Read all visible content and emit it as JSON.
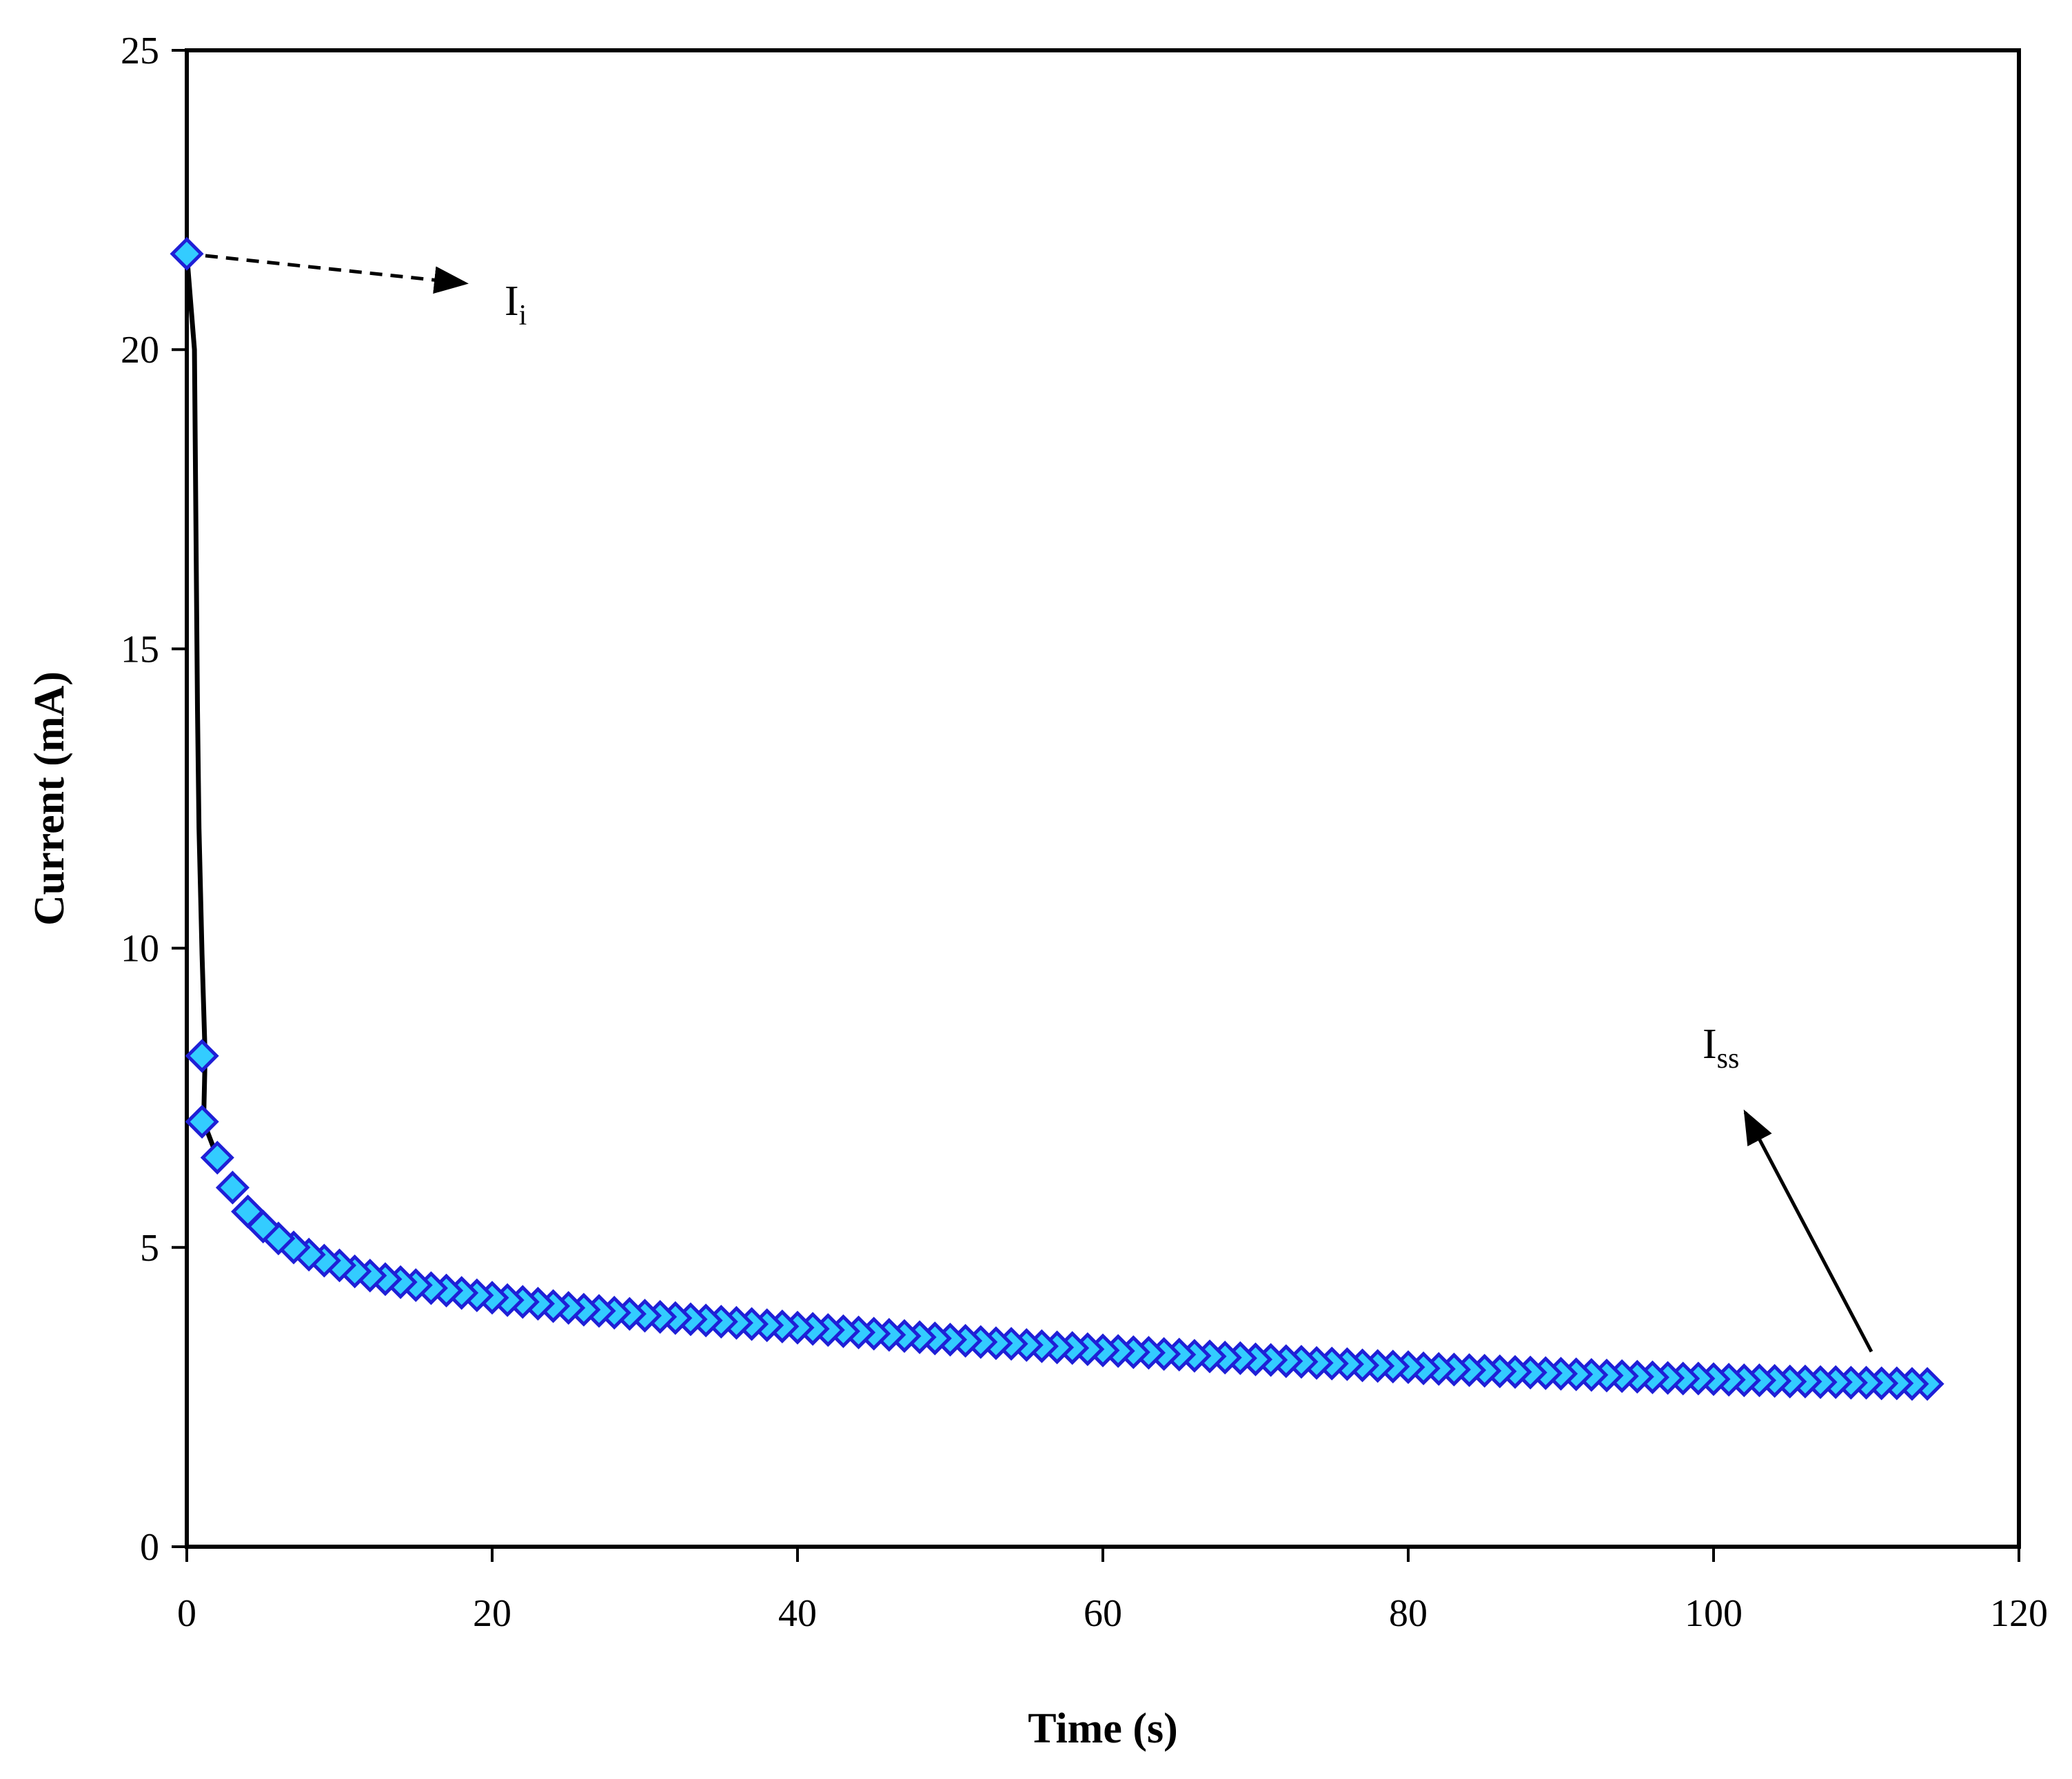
{
  "chart_data": {
    "type": "scatter",
    "xlabel": "Time (s)",
    "ylabel": "Current (mA)",
    "xlim": [
      0,
      120
    ],
    "ylim": [
      0,
      25
    ],
    "xticks": [
      "0",
      "20",
      "40",
      "60",
      "80",
      "100",
      "120"
    ],
    "yticks": [
      "0",
      "5",
      "10",
      "15",
      "20",
      "25"
    ],
    "grid": false,
    "legend": "none",
    "line_color": "#000000",
    "marker_fill": "#33ccff",
    "marker_stroke": "#1f1fd6",
    "line": [
      {
        "x": 0,
        "y": 21.6
      },
      {
        "x": 0.5,
        "y": 20
      },
      {
        "x": 0.7,
        "y": 14
      },
      {
        "x": 0.8,
        "y": 12
      },
      {
        "x": 1.0,
        "y": 9.9
      },
      {
        "x": 1.2,
        "y": 8.2
      },
      {
        "x": 1.1,
        "y": 7.1
      },
      {
        "x": 2.0,
        "y": 6.5
      }
    ],
    "series": [
      {
        "x": [
          0,
          1,
          1,
          2,
          3,
          4,
          5,
          6,
          7,
          8,
          9,
          10,
          11,
          12,
          13,
          14,
          15,
          16,
          17,
          18,
          19,
          20,
          21,
          22,
          23,
          24,
          25,
          26,
          27,
          28,
          29,
          30,
          31,
          32,
          33,
          34,
          35,
          36,
          37,
          38,
          39,
          40,
          41,
          42,
          43,
          44,
          45,
          46,
          47,
          48,
          49,
          50,
          51,
          52,
          53,
          54,
          55,
          56,
          57,
          58,
          59,
          60,
          61,
          62,
          63,
          64,
          65,
          66,
          67,
          68,
          69,
          70,
          71,
          72,
          73,
          74,
          75,
          76,
          77,
          78,
          79,
          80,
          81,
          82,
          83,
          84,
          85,
          86,
          87,
          88,
          89,
          90,
          91,
          92,
          93,
          94,
          95,
          96,
          97,
          98,
          99,
          100,
          101,
          102,
          103,
          104,
          105,
          106,
          107,
          108,
          109,
          110,
          111,
          112,
          113,
          114
        ],
        "y": [
          21.6,
          8.2,
          7.1,
          6.5,
          6.0,
          5.6,
          5.35,
          5.15,
          5.0,
          4.88,
          4.78,
          4.7,
          4.6,
          4.53,
          4.47,
          4.42,
          4.37,
          4.32,
          4.28,
          4.24,
          4.2,
          4.16,
          4.12,
          4.09,
          4.06,
          4.02,
          3.99,
          3.96,
          3.94,
          3.91,
          3.89,
          3.86,
          3.84,
          3.82,
          3.8,
          3.78,
          3.76,
          3.74,
          3.72,
          3.7,
          3.68,
          3.66,
          3.64,
          3.62,
          3.6,
          3.58,
          3.56,
          3.54,
          3.52,
          3.5,
          3.48,
          3.46,
          3.44,
          3.42,
          3.4,
          3.39,
          3.37,
          3.35,
          3.33,
          3.32,
          3.3,
          3.28,
          3.27,
          3.25,
          3.24,
          3.22,
          3.21,
          3.19,
          3.18,
          3.16,
          3.15,
          3.13,
          3.12,
          3.1,
          3.09,
          3.07,
          3.06,
          3.05,
          3.03,
          3.02,
          3.01,
          3.0,
          2.98,
          2.97,
          2.96,
          2.95,
          2.94,
          2.93,
          2.92,
          2.91,
          2.9,
          2.89,
          2.88,
          2.87,
          2.86,
          2.85,
          2.84,
          2.83,
          2.82,
          2.81,
          2.81,
          2.8,
          2.79,
          2.78,
          2.78,
          2.77,
          2.76,
          2.76,
          2.75,
          2.75,
          2.74,
          2.74,
          2.73,
          2.73,
          2.72,
          2.72
        ]
      }
    ],
    "annotations": [
      {
        "base": "I",
        "sub": "i",
        "arrow_style": "dashed"
      },
      {
        "base": "I",
        "sub": "ss",
        "arrow_style": "solid"
      }
    ]
  }
}
